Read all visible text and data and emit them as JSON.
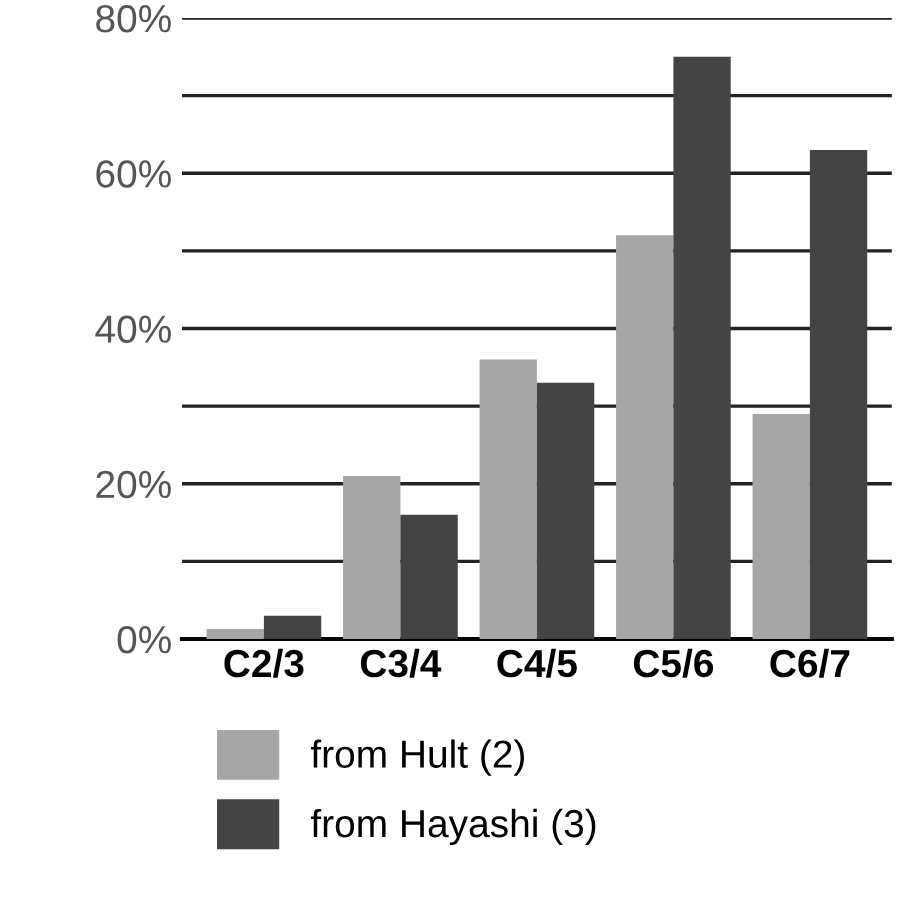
{
  "chart_data": {
    "type": "bar",
    "categories": [
      "C2/3",
      "C3/4",
      "C4/5",
      "C5/6",
      "C6/7"
    ],
    "series": [
      {
        "name": "from Hult (2)",
        "color": "#a6a6a6",
        "values": [
          1.3,
          21,
          36,
          52,
          29
        ]
      },
      {
        "name": "from Hayashi (3)",
        "color": "#444444",
        "values": [
          3,
          16,
          33,
          75,
          63
        ]
      }
    ],
    "ylim": [
      0,
      80
    ],
    "yticks": [
      {
        "value": 0,
        "label": "0%"
      },
      {
        "value": 10,
        "label": null
      },
      {
        "value": 20,
        "label": "20%"
      },
      {
        "value": 30,
        "label": null
      },
      {
        "value": 40,
        "label": "40%"
      },
      {
        "value": 50,
        "label": null
      },
      {
        "value": 60,
        "label": "60%"
      },
      {
        "value": 70,
        "label": null
      },
      {
        "value": 80,
        "label": "80%"
      }
    ],
    "grid": "y",
    "legend": "bottom"
  }
}
